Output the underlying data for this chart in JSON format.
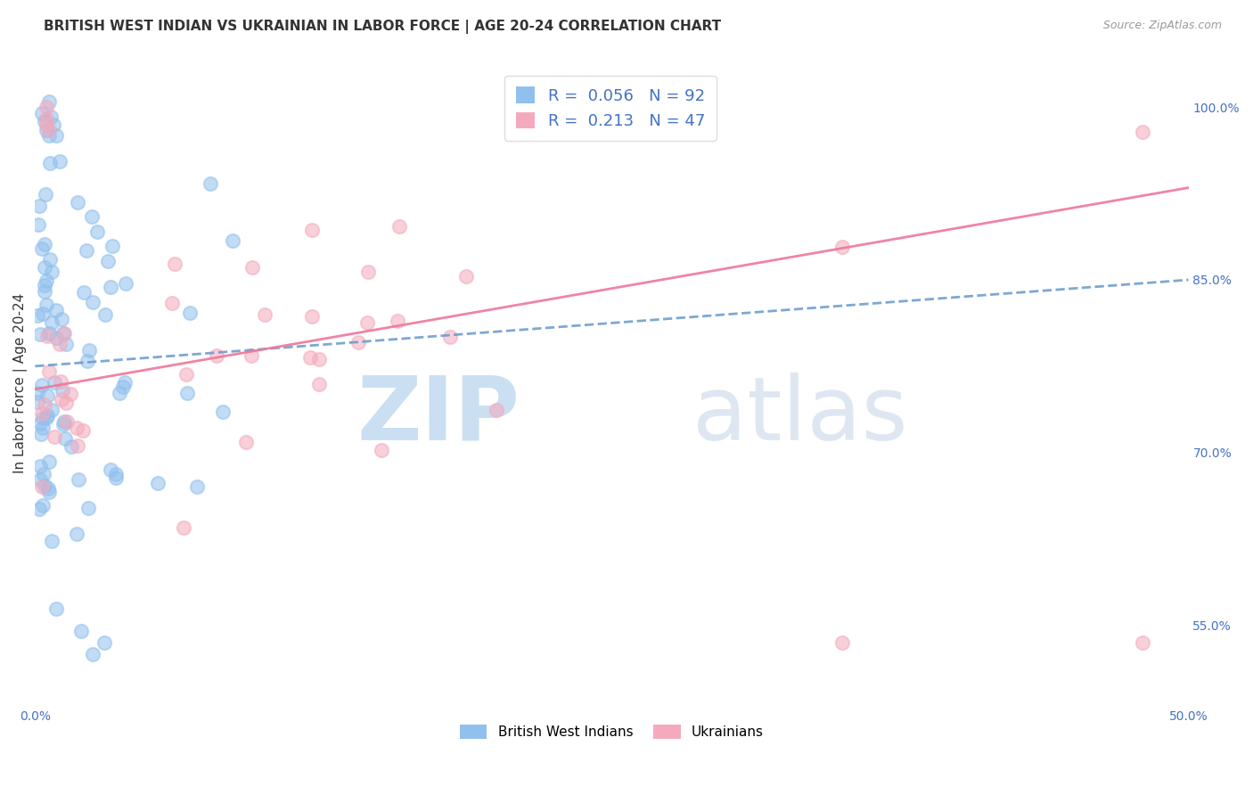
{
  "title": "BRITISH WEST INDIAN VS UKRAINIAN IN LABOR FORCE | AGE 20-24 CORRELATION CHART",
  "source": "Source: ZipAtlas.com",
  "ylabel": "In Labor Force | Age 20-24",
  "xlim": [
    0.0,
    0.5
  ],
  "ylim": [
    0.48,
    1.04
  ],
  "legend_r_blue": "0.056",
  "legend_n_blue": "92",
  "legend_r_pink": "0.213",
  "legend_n_pink": "47",
  "blue_color": "#90C0EE",
  "pink_color": "#F4AABC",
  "trendline_blue_color": "#6699CC",
  "trendline_pink_color": "#EE7799",
  "blue_label": "British West Indians",
  "pink_label": "Ukrainians",
  "grid_color": "#DDDDDD",
  "background_color": "#FFFFFF",
  "title_fontsize": 11,
  "axis_label_fontsize": 11,
  "tick_fontsize": 10,
  "legend_fontsize": 13
}
